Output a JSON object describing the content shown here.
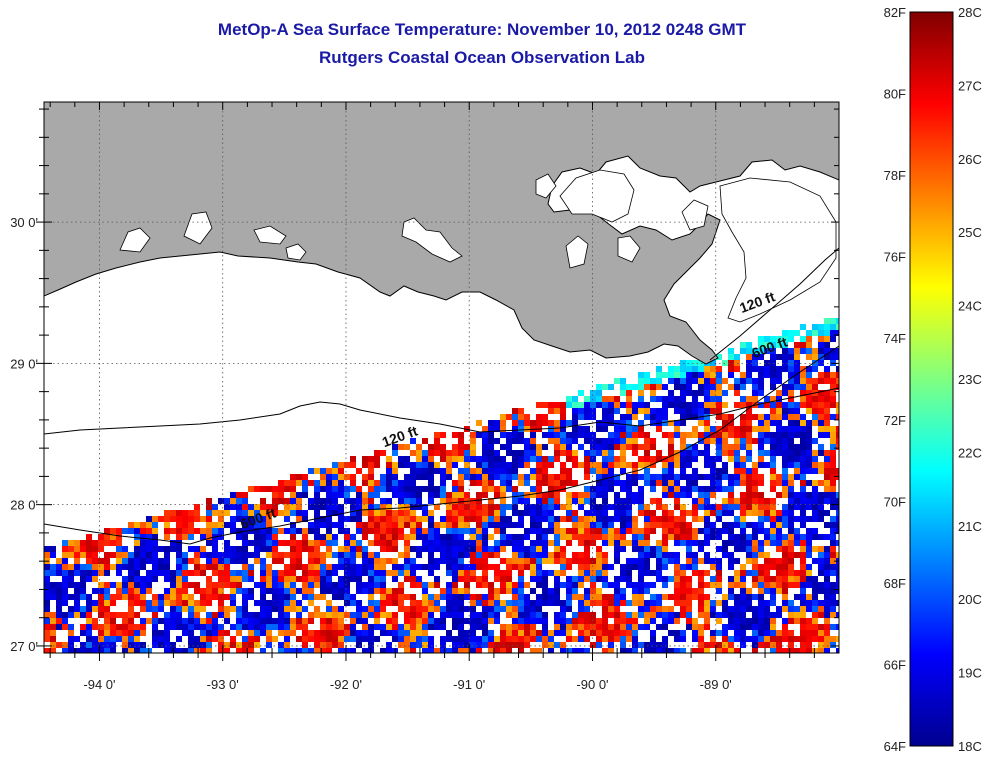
{
  "title_line1": "MetOp-A Sea Surface Temperature:  November 10, 2012 0248 GMT",
  "title_line2": "Rutgers Coastal Ocean Observation Lab",
  "map": {
    "lon_range": [
      -94.45,
      -88.0
    ],
    "lat_range": [
      26.95,
      30.85
    ],
    "x_ticks": [
      {
        "value": -94,
        "label": "-94 0'"
      },
      {
        "value": -93,
        "label": "-93 0'"
      },
      {
        "value": -92,
        "label": "-92 0'"
      },
      {
        "value": -91,
        "label": "-91 0'"
      },
      {
        "value": -90,
        "label": "-90 0'"
      },
      {
        "value": -89,
        "label": "-89 0'"
      }
    ],
    "y_ticks": [
      {
        "value": 30,
        "label": "30 0'"
      },
      {
        "value": 29,
        "label": "29 0'"
      },
      {
        "value": 28,
        "label": "28 0'"
      },
      {
        "value": 27,
        "label": "27 0'"
      }
    ],
    "gridlines": true,
    "land_color": "#a9a9a9",
    "contour_labels": [
      {
        "text": "120 ft",
        "lon": -91.55,
        "lat": 28.45
      },
      {
        "text": "600 ft",
        "lon": -92.7,
        "lat": 27.87
      },
      {
        "text": "120 ft",
        "lon": -88.65,
        "lat": 29.4
      },
      {
        "text": "600 ft",
        "lon": -88.55,
        "lat": 29.08
      }
    ]
  },
  "colorbar": {
    "fahrenheit_labels": [
      "82F",
      "80F",
      "78F",
      "76F",
      "74F",
      "72F",
      "70F",
      "68F",
      "66F",
      "64F"
    ],
    "celsius_labels": [
      "28C",
      "27C",
      "26C",
      "25C",
      "24C",
      "23C",
      "22C",
      "21C",
      "20C",
      "19C",
      "18C"
    ],
    "stops": [
      "#00008f",
      "#0000ff",
      "#0080ff",
      "#00ffff",
      "#80ff80",
      "#ffff00",
      "#ff8000",
      "#ff0000",
      "#800000"
    ]
  }
}
